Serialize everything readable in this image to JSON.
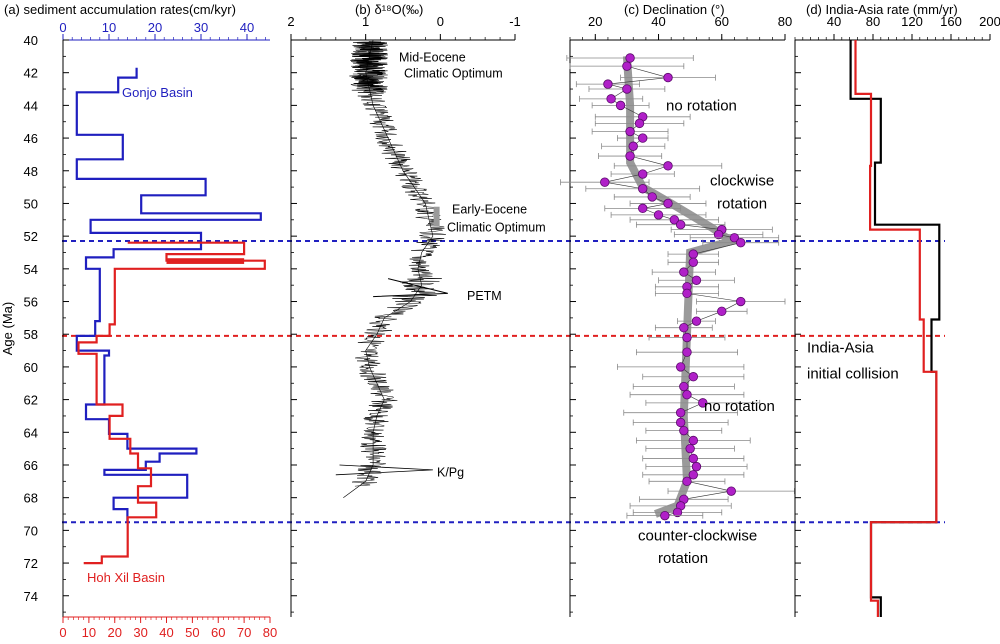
{
  "figure": {
    "age_axis_label": "Age (Ma)",
    "age_ticks": [
      40,
      42,
      44,
      46,
      48,
      50,
      52,
      54,
      56,
      58,
      60,
      62,
      64,
      66,
      68,
      70,
      72,
      74
    ],
    "age_range": [
      40,
      75.3
    ],
    "colors": {
      "blue": "#1f1fbf",
      "red": "#e02020",
      "black": "#000000",
      "purple": "#b020c8",
      "grey": "#9a9a9a"
    },
    "dashed_lines": [
      {
        "age": 52.3,
        "color": "#2020c0"
      },
      {
        "age": 58.1,
        "color": "#e02020"
      },
      {
        "age": 69.5,
        "color": "#2020c0"
      }
    ]
  },
  "chart_data": [
    {
      "type": "line",
      "panel": "a",
      "title": "(a) sediment accumulation rates(cm/kyr)",
      "ylabel": "Age (Ma)",
      "ylim": [
        40,
        75.3
      ],
      "top_axis": {
        "ticks": [
          0,
          10,
          20,
          30,
          40
        ],
        "range": [
          0,
          45
        ],
        "color": "#1f1fbf"
      },
      "bottom_axis": {
        "ticks": [
          0,
          10,
          20,
          30,
          40,
          50,
          60,
          70,
          80
        ],
        "range": [
          0,
          80
        ],
        "color": "#e02020"
      },
      "series": [
        {
          "name": "Gonjo Basin",
          "color": "#1f1fbf",
          "axis": "top",
          "points": [
            [
              16,
              41.7
            ],
            [
              16,
              42.3
            ],
            [
              12,
              42.3
            ],
            [
              12,
              43.2
            ],
            [
              3,
              43.2
            ],
            [
              3,
              45.8
            ],
            [
              13,
              45.8
            ],
            [
              13,
              47.3
            ],
            [
              3,
              47.3
            ],
            [
              3,
              48.5
            ],
            [
              31,
              48.5
            ],
            [
              31,
              49.5
            ],
            [
              17,
              49.5
            ],
            [
              17,
              50.6
            ],
            [
              43,
              50.6
            ],
            [
              43,
              51
            ],
            [
              6,
              51
            ],
            [
              6,
              51.8
            ],
            [
              30,
              51.8
            ],
            [
              30,
              52.8
            ],
            [
              11,
              52.8
            ],
            [
              11,
              53.3
            ],
            [
              5,
              53.3
            ],
            [
              5,
              54
            ],
            [
              8,
              54
            ],
            [
              8,
              57.2
            ],
            [
              7,
              57.2
            ],
            [
              7,
              58.1
            ],
            [
              3,
              58.1
            ],
            [
              3,
              59
            ],
            [
              10,
              59
            ],
            [
              10,
              59.3
            ],
            [
              9,
              59.3
            ],
            [
              9,
              62.3
            ],
            [
              5,
              62.3
            ],
            [
              5,
              63.2
            ],
            [
              10,
              63.2
            ],
            [
              10,
              64.1
            ],
            [
              14,
              64.1
            ],
            [
              14,
              65
            ],
            [
              29,
              65
            ],
            [
              29,
              65.3
            ],
            [
              21,
              65.3
            ],
            [
              21,
              65.8
            ],
            [
              18,
              65.8
            ],
            [
              18,
              66.3
            ],
            [
              9,
              66.3
            ],
            [
              9,
              66.6
            ],
            [
              27,
              66.6
            ],
            [
              27,
              68
            ],
            [
              11,
              68
            ],
            [
              11,
              68.7
            ],
            [
              14,
              68.7
            ],
            [
              14,
              69.5
            ]
          ]
        },
        {
          "name": "Hoh Xil Basin",
          "color": "#e02020",
          "axis": "bottom",
          "points": [
            [
              25,
              52.4
            ],
            [
              70,
              52.4
            ],
            [
              70,
              53.1
            ],
            [
              40,
              53.1
            ],
            [
              40,
              53.5
            ],
            [
              78,
              53.5
            ],
            [
              78,
              54
            ],
            [
              20,
              54
            ],
            [
              20,
              57.4
            ],
            [
              18,
              57.4
            ],
            [
              18,
              58.1
            ],
            [
              13,
              58.1
            ],
            [
              13,
              58.5
            ],
            [
              6,
              58.5
            ],
            [
              6,
              59.2
            ],
            [
              13,
              59.2
            ],
            [
              13,
              62.3
            ],
            [
              23,
              62.3
            ],
            [
              23,
              63
            ],
            [
              18,
              63
            ],
            [
              18,
              64.4
            ],
            [
              26,
              64.4
            ],
            [
              26,
              65.3
            ],
            [
              29,
              65.3
            ],
            [
              29,
              66.2
            ],
            [
              34,
              66.2
            ],
            [
              34,
              67.3
            ],
            [
              29,
              67.3
            ],
            [
              29,
              68.3
            ],
            [
              36,
              68.3
            ],
            [
              36,
              69.2
            ],
            [
              25,
              69.2
            ],
            [
              25,
              71.6
            ],
            [
              15,
              71.6
            ],
            [
              15,
              72
            ],
            [
              8,
              72
            ]
          ]
        }
      ],
      "labels": [
        "Gonjo Basin",
        "Hoh Xil Basin"
      ]
    },
    {
      "type": "line",
      "panel": "b",
      "title": "(b) δ¹⁸O(‰)",
      "ylim": [
        40,
        75.3
      ],
      "top_axis": {
        "ticks": [
          2,
          1,
          0,
          -1
        ],
        "range": [
          2,
          -1
        ],
        "tick_labels": [
          "2",
          "1",
          "0",
          "-1"
        ]
      },
      "series": [
        {
          "name": "",
          "color": "#000000",
          "points": [
            [
              0.9,
              40
            ],
            [
              0.95,
              41
            ],
            [
              1.0,
              42
            ],
            [
              0.95,
              43
            ],
            [
              0.9,
              44
            ],
            [
              0.8,
              45
            ],
            [
              0.7,
              46
            ],
            [
              0.6,
              47
            ],
            [
              0.5,
              48
            ],
            [
              0.35,
              49
            ],
            [
              0.2,
              50
            ],
            [
              0.15,
              51
            ],
            [
              0.1,
              52
            ],
            [
              0.25,
              53
            ],
            [
              0.3,
              54
            ],
            [
              0.25,
              55
            ],
            [
              0.4,
              56
            ],
            [
              0.75,
              57
            ],
            [
              0.85,
              58
            ],
            [
              1.0,
              59
            ],
            [
              0.95,
              60
            ],
            [
              0.85,
              61
            ],
            [
              0.75,
              62
            ],
            [
              0.85,
              63
            ],
            [
              0.9,
              64
            ],
            [
              0.9,
              65
            ],
            [
              0.9,
              66
            ],
            [
              1.0,
              67
            ],
            [
              1.3,
              68
            ]
          ]
        }
      ],
      "annotations": [
        {
          "text": "Mid-Eocene",
          "age": 41
        },
        {
          "text": "Climatic Optimum",
          "age": 42
        },
        {
          "text": "Early-Eocene",
          "age": 50.3
        },
        {
          "text": "Climatic Optimum",
          "age": 51.4
        },
        {
          "text": "PETM",
          "age": 55.6
        },
        {
          "text": "K/Pg",
          "age": 66.4
        }
      ]
    },
    {
      "type": "scatter",
      "panel": "c",
      "title": "(c) Declination (°)",
      "ylim": [
        40,
        75.3
      ],
      "top_axis": {
        "ticks": [
          20,
          40,
          60,
          80
        ],
        "range": [
          12,
          80
        ]
      },
      "points_age": [
        41.1,
        41.6,
        42.3,
        42.7,
        43.0,
        43.6,
        44.0,
        44.7,
        45.1,
        45.6,
        46.0,
        46.5,
        47.1,
        47.7,
        48.2,
        48.7,
        49.1,
        49.6,
        50.0,
        50.3,
        50.7,
        51.0,
        51.3,
        51.6,
        51.9,
        52.1,
        52.4,
        53.1,
        53.6,
        54.2,
        54.7,
        55.1,
        55.5,
        56.0,
        56.6,
        57.2,
        57.6,
        58.2,
        59.1,
        60.0,
        60.6,
        61.2,
        61.7,
        62.2,
        62.8,
        63.4,
        63.9,
        64.5,
        65.0,
        65.6,
        66.1,
        66.6,
        67.0,
        67.6,
        68.1,
        68.5,
        68.9,
        69.1
      ],
      "points_decl": [
        31,
        30,
        43,
        24,
        30,
        25,
        28,
        35,
        34,
        31,
        35,
        32,
        31,
        43,
        35,
        23,
        35,
        38,
        43,
        35,
        40,
        45,
        47,
        60,
        59,
        64,
        66,
        51,
        51,
        48,
        52,
        49,
        49,
        66,
        60,
        52,
        48,
        49,
        49,
        47,
        51,
        48,
        49,
        54,
        47,
        47,
        48,
        51,
        50,
        51,
        52,
        51,
        49,
        63,
        48,
        47,
        46,
        42
      ],
      "error_deg": [
        20,
        18,
        15,
        10,
        12,
        10,
        9,
        15,
        14,
        12,
        8,
        10,
        10,
        17,
        10,
        14,
        18,
        12,
        12,
        12,
        15,
        14,
        14,
        16,
        14,
        14,
        12,
        8,
        8,
        10,
        12,
        10,
        10,
        14,
        8,
        6,
        9,
        12,
        16,
        20,
        16,
        16,
        18,
        18,
        18,
        15,
        12,
        18,
        14,
        16,
        16,
        16,
        12,
        20,
        14,
        16,
        14,
        12
      ],
      "trend_line": [
        [
          30,
          41
        ],
        [
          31,
          44
        ],
        [
          31,
          47.5
        ],
        [
          35,
          49
        ],
        [
          44,
          50
        ],
        [
          57,
          51.5
        ],
        [
          63,
          52.3
        ],
        [
          50,
          53
        ],
        [
          49,
          58
        ],
        [
          48,
          63
        ],
        [
          49,
          67
        ],
        [
          46,
          68.5
        ],
        [
          39,
          69
        ]
      ],
      "annotations": [
        {
          "text": "no rotation",
          "age": 44
        },
        {
          "text": "clockwise",
          "age": 48.6
        },
        {
          "text": "rotation",
          "age": 50
        },
        {
          "text": "no rotation",
          "age": 62.4
        },
        {
          "text": "counter-clockwise",
          "age": 70.3
        },
        {
          "text": "rotation",
          "age": 71.7
        }
      ]
    },
    {
      "type": "line",
      "panel": "d",
      "title": "(d) India-Asia rate (mm/yr)",
      "ylim": [
        40,
        75.3
      ],
      "top_axis": {
        "ticks": [
          40,
          80,
          120,
          160,
          200
        ],
        "range": [
          0,
          200
        ]
      },
      "series": [
        {
          "name": "",
          "color": "#000000",
          "points": [
            [
              57,
              40
            ],
            [
              57,
              43.3
            ],
            [
              57,
              43.6
            ],
            [
              88,
              43.6
            ],
            [
              88,
              47.5
            ],
            [
              82,
              47.5
            ],
            [
              82,
              51.3
            ],
            [
              148,
              51.3
            ],
            [
              148,
              57.1
            ],
            [
              140,
              57.1
            ],
            [
              140,
              60.3
            ],
            [
              145,
              60.3
            ],
            [
              145,
              69.5
            ],
            [
              78,
              69.5
            ],
            [
              78,
              74.1
            ],
            [
              88,
              74.1
            ],
            [
              88,
              75.3
            ]
          ]
        },
        {
          "name": "",
          "color": "#e02020",
          "points": [
            [
              62,
              40
            ],
            [
              62,
              43.3
            ],
            [
              78,
              43.3
            ],
            [
              78,
              47.7
            ],
            [
              77,
              47.7
            ],
            [
              77,
              51.6
            ],
            [
              128,
              51.6
            ],
            [
              128,
              57.1
            ],
            [
              132,
              57.1
            ],
            [
              132,
              60.3
            ],
            [
              145,
              60.3
            ],
            [
              145,
              69.5
            ],
            [
              78,
              69.5
            ],
            [
              78,
              74.3
            ],
            [
              85,
              74.3
            ],
            [
              85,
              75.3
            ]
          ]
        }
      ],
      "annotations": [
        {
          "text": "India-Asia",
          "age": 58.8
        },
        {
          "text": "initial collision",
          "age": 60.4
        }
      ]
    }
  ]
}
